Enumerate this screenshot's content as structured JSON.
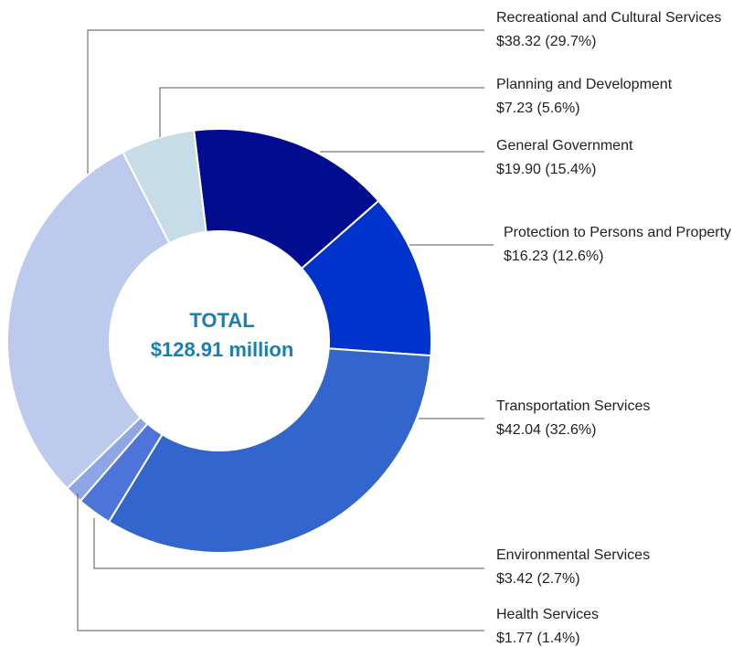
{
  "chart_data": {
    "type": "donut",
    "annotations": [
      "TOTAL",
      "$128.91 million"
    ],
    "categories": [
      "General Government",
      "Protection to Persons and Property",
      "Transportation Services",
      "Environmental Services",
      "Health Services",
      "Recreational and Cultural Services",
      "Planning and Development"
    ],
    "values": [
      19.9,
      16.23,
      42.04,
      3.42,
      1.77,
      38.32,
      7.23
    ],
    "value_labels": [
      "$19.90 (15.4%)",
      "$16.23 (12.6%)",
      "$42.04 (32.6%)",
      "$3.42 (2.7%)",
      "$1.77 (1.4%)",
      "$38.32 (29.7%)",
      "$7.23 (5.6%)"
    ],
    "colors": [
      "#020c8e",
      "#0033cc",
      "#3366cc",
      "#4d74d8",
      "#8ea6e6",
      "#bccbed",
      "#c6dce6"
    ]
  }
}
